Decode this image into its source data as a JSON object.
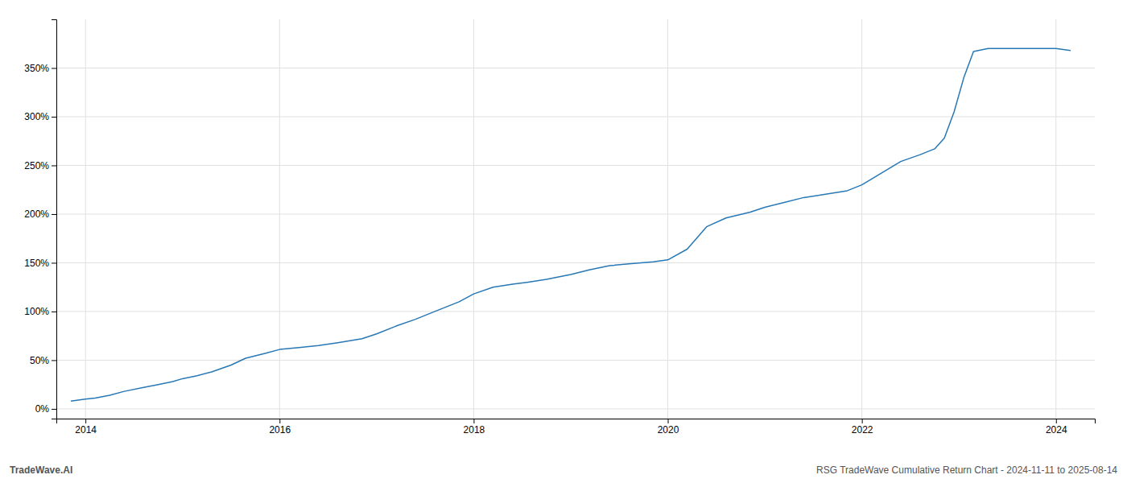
{
  "chart_data": {
    "type": "line",
    "title": "RSG TradeWave Cumulative Return Chart - 2024-11-11 to 2025-08-14",
    "annotations": [
      "TradeWave.AI"
    ],
    "x": [
      2013.85,
      2014.0,
      2014.1,
      2014.25,
      2014.4,
      2014.6,
      2014.75,
      2014.9,
      2015.0,
      2015.15,
      2015.3,
      2015.5,
      2015.65,
      2015.85,
      2016.0,
      2016.2,
      2016.4,
      2016.6,
      2016.85,
      2017.0,
      2017.2,
      2017.4,
      2017.6,
      2017.85,
      2018.0,
      2018.2,
      2018.4,
      2018.55,
      2018.75,
      2019.0,
      2019.2,
      2019.4,
      2019.6,
      2019.85,
      2020.0,
      2020.2,
      2020.4,
      2020.6,
      2020.85,
      2021.0,
      2021.2,
      2021.4,
      2021.6,
      2021.85,
      2022.0,
      2022.2,
      2022.4,
      2022.6,
      2022.75,
      2022.85,
      2022.95,
      2023.05,
      2023.15,
      2023.3,
      2023.5,
      2023.7,
      2023.9,
      2024.0,
      2024.15
    ],
    "values": [
      8,
      10,
      11,
      14,
      18,
      22,
      25,
      28,
      31,
      34,
      38,
      45,
      52,
      57,
      61,
      63,
      65,
      68,
      72,
      77,
      85,
      92,
      100,
      110,
      118,
      125,
      128,
      130,
      133,
      138,
      143,
      147,
      149,
      151,
      153,
      164,
      187,
      196,
      202,
      207,
      212,
      217,
      220,
      224,
      230,
      242,
      254,
      261,
      267,
      278,
      305,
      340,
      367,
      370,
      370,
      370,
      370,
      370,
      368
    ],
    "color": "#2878b5",
    "xlim": [
      2013.7,
      2024.4
    ],
    "ylim": [
      -10,
      400
    ],
    "xticks": [
      2014,
      2016,
      2018,
      2020,
      2022,
      2024
    ],
    "yticks": [
      {
        "value": 0,
        "label": "0%"
      },
      {
        "value": 50,
        "label": "50%"
      },
      {
        "value": 100,
        "label": "100%"
      },
      {
        "value": 150,
        "label": "150%"
      },
      {
        "value": 200,
        "label": "200%"
      },
      {
        "value": 250,
        "label": "250%"
      },
      {
        "value": 300,
        "label": "300%"
      },
      {
        "value": 350,
        "label": "350%"
      }
    ],
    "grid": true
  }
}
